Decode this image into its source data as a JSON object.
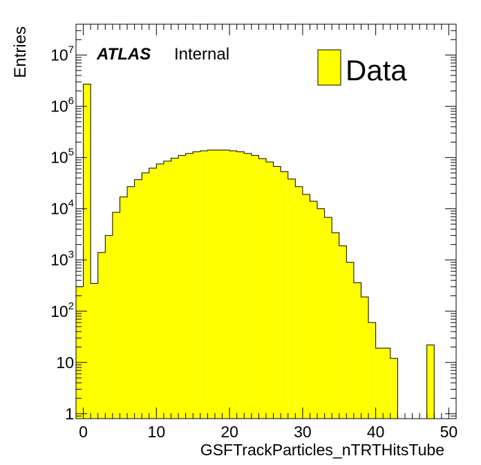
{
  "chart_data": {
    "type": "bar",
    "title": "",
    "xlabel": "GSFTrackParticles_nTRTHitsTube",
    "ylabel": "Entries",
    "label": {
      "experiment": "ATLAS",
      "status": "Internal"
    },
    "xlim": [
      -1,
      51
    ],
    "ylim": [
      0.8,
      40000000
    ],
    "yscale": "log",
    "grid": false,
    "legend": {
      "position": "top-right",
      "entries": [
        {
          "name": "Data",
          "color": "#ffff00"
        }
      ]
    },
    "x_ticks": [
      {
        "value": 0,
        "label": "0"
      },
      {
        "value": 10,
        "label": "10"
      },
      {
        "value": 20,
        "label": "20"
      },
      {
        "value": 30,
        "label": "30"
      },
      {
        "value": 40,
        "label": "40"
      },
      {
        "value": 50,
        "label": "50"
      }
    ],
    "y_ticks": [
      {
        "value": 1,
        "base": "1",
        "exp": ""
      },
      {
        "value": 10,
        "base": "10",
        "exp": ""
      },
      {
        "value": 100,
        "base": "10",
        "exp": "2"
      },
      {
        "value": 1000,
        "base": "10",
        "exp": "3"
      },
      {
        "value": 10000,
        "base": "10",
        "exp": "4"
      },
      {
        "value": 100000,
        "base": "10",
        "exp": "5"
      },
      {
        "value": 1000000,
        "base": "10",
        "exp": "6"
      },
      {
        "value": 10000000,
        "base": "10",
        "exp": "7"
      }
    ],
    "bin_edges": [
      -1,
      0,
      1,
      2,
      3,
      4,
      5,
      6,
      7,
      8,
      9,
      10,
      11,
      12,
      13,
      14,
      15,
      16,
      17,
      18,
      19,
      20,
      21,
      22,
      23,
      24,
      25,
      26,
      27,
      28,
      29,
      30,
      31,
      32,
      33,
      34,
      35,
      36,
      37,
      38,
      39,
      40,
      41,
      42,
      43,
      44,
      45,
      46,
      47,
      48,
      49,
      50,
      51
    ],
    "series": [
      {
        "name": "Data",
        "color": "#ffff00",
        "values": [
          300,
          2700000,
          350,
          1400,
          3000,
          8500,
          17000,
          27000,
          37000,
          50000,
          62000,
          75000,
          85000,
          97000,
          110000,
          120000,
          130000,
          135000,
          140000,
          140000,
          140000,
          135000,
          130000,
          120000,
          110000,
          95000,
          82000,
          67000,
          53000,
          38000,
          27000,
          19000,
          14000,
          10000,
          6800,
          3400,
          1900,
          900,
          360,
          190,
          60,
          19,
          19,
          12,
          0,
          0,
          0,
          0,
          22,
          0,
          0,
          0
        ]
      }
    ]
  }
}
